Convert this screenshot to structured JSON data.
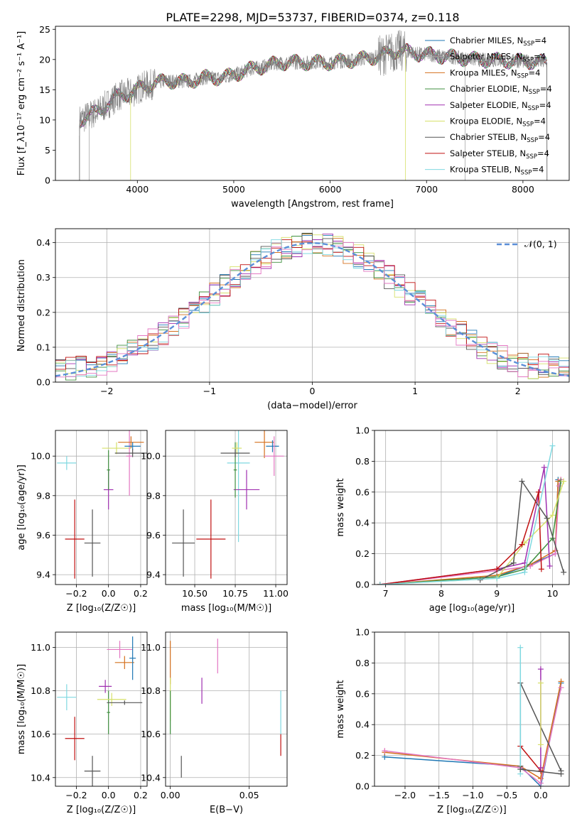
{
  "title": "PLATE=2298, MJD=53737, FIBERID=0374, z=0.118",
  "colors": {
    "Chabrier MILES": "#1f77b4",
    "Salpeter MILES": "#aaaaaa",
    "Kroupa MILES": "#d4701e",
    "Chabrier ELODIE": "#3f8f3f",
    "Salpeter ELODIE": "#a030b0",
    "Kroupa ELODIE": "#d6e06a",
    "Chabrier STELIB": "#555555",
    "Salpeter STELIB": "#c01010",
    "Kroupa STELIB": "#7fd8e0",
    "data": "#808080",
    "normal": "#5b8fd8",
    "pink": "#e377c2"
  },
  "chart_data": [
    {
      "type": "line",
      "xlabel": "wavelength [Angstrom, rest frame]",
      "ylabel": "Flux [f_λ10^-17 erg cm^-2 s^-1 A^-1]",
      "xlim": [
        3150,
        8480
      ],
      "ylim": [
        0,
        25.5
      ],
      "xticks": [
        "4000",
        "5000",
        "6000",
        "7000",
        "8000"
      ],
      "yticks": [
        "0",
        "5",
        "10",
        "15",
        "20",
        "25"
      ],
      "legend_position": "upper-right",
      "legend": [
        "Chabrier MILES, N_SSP=4",
        "Salpeter MILES, N_SSP=4",
        "Kroupa MILES, N_SSP=4",
        "Chabrier ELODIE, N_SSP=4",
        "Salpeter ELODIE, N_SSP=4",
        "Kroupa ELODIE, N_SSP=4",
        "Chabrier STELIB, N_SSP=4",
        "Salpeter STELIB, N_SSP=4",
        "Kroupa STELIB, N_SSP=4"
      ],
      "continuum": [
        [
          3400,
          10
        ],
        [
          3600,
          11.5
        ],
        [
          3800,
          14
        ],
        [
          3950,
          14.5
        ],
        [
          4050,
          15.5
        ],
        [
          4300,
          16.5
        ],
        [
          4500,
          16.3
        ],
        [
          4700,
          17
        ],
        [
          4900,
          17
        ],
        [
          5000,
          17.5
        ],
        [
          5200,
          18.5
        ],
        [
          5500,
          19.5
        ],
        [
          5800,
          19.5
        ],
        [
          6000,
          19.5
        ],
        [
          6300,
          20
        ],
        [
          6500,
          20.5
        ],
        [
          6700,
          21.5
        ],
        [
          6900,
          21
        ],
        [
          7200,
          20.5
        ],
        [
          7500,
          20
        ],
        [
          7800,
          19.8
        ],
        [
          8000,
          19.7
        ],
        [
          8250,
          19.5
        ]
      ],
      "data_wavelength_range": [
        3400,
        8250
      ],
      "model_ranges": {
        "Salpeter MILES": [
          3500,
          7400
        ],
        "Kroupa ELODIE": [
          3930,
          6780
        ],
        "Chabrier STELIB": [
          3400,
          8250
        ]
      }
    },
    {
      "type": "step-histogram",
      "xlabel": "(data-model)/error",
      "ylabel": "Normed distribution",
      "xlim": [
        -2.5,
        2.5
      ],
      "ylim": [
        0,
        0.44
      ],
      "xticks": [
        "-2",
        "-1",
        "0",
        "1",
        "2"
      ],
      "yticks": [
        "0.0",
        "0.1",
        "0.2",
        "0.3",
        "0.4"
      ],
      "grid": true,
      "bin_width": 0.1,
      "reference_curve": "N(0,1)",
      "legend": [
        "𝒩(0, 1)"
      ],
      "legend_position": "upper-right"
    },
    {
      "type": "scatter-errorbar",
      "xlabel": "Z [log10(Z/Z☉)]",
      "ylabel": "age [log10(age/yr)]",
      "xlim": [
        -0.33,
        0.24
      ],
      "ylim": [
        9.35,
        10.13
      ],
      "xticks": [
        "-0.2",
        "0.0",
        "0.2"
      ],
      "yticks": [
        "9.4",
        "9.6",
        "9.8",
        "10.0"
      ],
      "grid": true,
      "points": [
        {
          "series": "Kroupa STELIB",
          "x": -0.26,
          "y": 9.965,
          "xerr": 0.06,
          "yerr": 0.035
        },
        {
          "series": "Salpeter STELIB",
          "x": -0.21,
          "y": 9.58,
          "xerr": 0.06,
          "yerr": 0.2
        },
        {
          "series": "Chabrier STELIB",
          "x": -0.1,
          "y": 9.56,
          "xerr": 0.05,
          "yerr": 0.17
        },
        {
          "series": "Salpeter ELODIE",
          "x": 0.0,
          "y": 9.83,
          "xerr": 0.03,
          "yerr": 0.1
        },
        {
          "series": "Kroupa ELODIE",
          "x": 0.05,
          "y": 10.04,
          "xerr": 0.09,
          "yerr": 0.03
        },
        {
          "series": "pink",
          "x": 0.13,
          "y": 10.0,
          "xerr": 0.02,
          "yerr": 0.2
        },
        {
          "series": "Kroupa MILES",
          "x": 0.14,
          "y": 10.07,
          "xerr": 0.08,
          "yerr": 0.03
        },
        {
          "series": "Chabrier MILES",
          "x": 0.15,
          "y": 10.05,
          "xerr": 0.05,
          "yerr": 0.02
        },
        {
          "series": "Chabrier STELIB",
          "x": 0.15,
          "y": 10.015,
          "xerr": 0.11,
          "yerr": 0.02
        },
        {
          "series": "Chabrier ELODIE",
          "x": 0.0,
          "y": 9.93,
          "xerr": 0.01,
          "yerr": 0.1
        }
      ]
    },
    {
      "type": "scatter-errorbar",
      "xlabel": "mass [log10(M/M☉)]",
      "ylabel": "",
      "xlim": [
        10.32,
        11.07
      ],
      "ylim": [
        9.35,
        10.13
      ],
      "xticks": [
        "10.50",
        "10.75",
        "11.00"
      ],
      "yticks": [
        "9.4",
        "9.6",
        "9.8",
        "10.0"
      ],
      "grid": true,
      "points": [
        {
          "series": "Chabrier STELIB",
          "x": 10.43,
          "y": 9.56,
          "xerr": 0.07,
          "yerr": 0.17
        },
        {
          "series": "Salpeter STELIB",
          "x": 10.6,
          "y": 9.58,
          "xerr": 0.09,
          "yerr": 0.2
        },
        {
          "series": "Kroupa STELIB",
          "x": 10.77,
          "y": 9.965,
          "xerr": 0.07,
          "yerr": 0.4
        },
        {
          "series": "Salpeter ELODIE",
          "x": 10.82,
          "y": 9.83,
          "xerr": 0.08,
          "yerr": 0.1
        },
        {
          "series": "Chabrier ELODIE",
          "x": 10.75,
          "y": 9.93,
          "xerr": 0.01,
          "yerr": 0.14
        },
        {
          "series": "Kroupa ELODIE",
          "x": 10.76,
          "y": 10.04,
          "xerr": 0.03,
          "yerr": 0.03
        },
        {
          "series": "Chabrier STELIB",
          "x": 10.75,
          "y": 10.015,
          "xerr": 0.09,
          "yerr": 0.02
        },
        {
          "series": "Kroupa MILES",
          "x": 10.93,
          "y": 10.07,
          "xerr": 0.06,
          "yerr": 0.08
        },
        {
          "series": "Chabrier MILES",
          "x": 10.98,
          "y": 10.05,
          "xerr": 0.04,
          "yerr": 0.03
        },
        {
          "series": "pink",
          "x": 10.99,
          "y": 10.0,
          "xerr": 0.06,
          "yerr": 0.1
        }
      ]
    },
    {
      "type": "line",
      "xlabel": "age [log10(age/yr)]",
      "ylabel": "mass weight",
      "xlim": [
        6.8,
        10.3
      ],
      "ylim": [
        0,
        1.0
      ],
      "xticks": [
        "7",
        "8",
        "9",
        "10"
      ],
      "yticks": [
        "0.0",
        "0.2",
        "0.4",
        "0.6",
        "0.8",
        "1.0"
      ],
      "grid": true,
      "series": [
        {
          "name": "Chabrier MILES",
          "x": [
            6.9,
            9.0,
            9.6,
            10.05,
            10.1,
            10.15
          ],
          "y": [
            0.0,
            0.05,
            0.13,
            0.2,
            0.68,
            0.67
          ]
        },
        {
          "name": "Kroupa MILES",
          "x": [
            6.9,
            9.0,
            9.6,
            10.05,
            10.1,
            10.15
          ],
          "y": [
            0.0,
            0.06,
            0.13,
            0.22,
            0.67,
            0.68
          ]
        },
        {
          "name": "pink",
          "x": [
            6.9,
            9.0,
            9.6,
            10.05,
            10.12,
            10.15
          ],
          "y": [
            0.0,
            0.09,
            0.12,
            0.2,
            0.64,
            0.68
          ]
        },
        {
          "name": "Chabrier ELODIE",
          "x": [
            6.9,
            9.0,
            9.5,
            10.0,
            10.15
          ],
          "y": [
            0.0,
            0.05,
            0.1,
            0.3,
            0.67
          ]
        },
        {
          "name": "Salpeter ELODIE",
          "x": [
            6.9,
            9.0,
            9.5,
            9.85,
            9.95
          ],
          "y": [
            0.0,
            0.1,
            0.14,
            0.76,
            0.12
          ]
        },
        {
          "name": "Kroupa ELODIE",
          "x": [
            6.9,
            9.0,
            9.5,
            10.0,
            10.2
          ],
          "y": [
            0.0,
            0.04,
            0.27,
            0.45,
            0.67
          ]
        },
        {
          "name": "Chabrier STELIB",
          "x": [
            8.7,
            9.3,
            9.45,
            9.9,
            10.2
          ],
          "y": [
            0.03,
            0.14,
            0.67,
            0.43,
            0.08
          ]
        },
        {
          "name": "Salpeter STELIB",
          "x": [
            6.9,
            9.0,
            9.45,
            9.75,
            9.8
          ],
          "y": [
            0.0,
            0.1,
            0.26,
            0.6,
            0.1
          ]
        },
        {
          "name": "Kroupa STELIB",
          "x": [
            6.9,
            9.0,
            9.5,
            10.0
          ],
          "y": [
            0.0,
            0.04,
            0.08,
            0.9
          ]
        }
      ]
    },
    {
      "type": "scatter-errorbar",
      "xlabel": "Z [log10(Z/Z☉)]",
      "ylabel": "mass [log10(M/M☉)]",
      "xlim": [
        -0.33,
        0.24
      ],
      "ylim": [
        10.36,
        11.07
      ],
      "xticks": [
        "-0.2",
        "0.0",
        "0.2"
      ],
      "yticks": [
        "10.4",
        "10.6",
        "10.8",
        "11.0"
      ],
      "grid": true,
      "points": [
        {
          "series": "Kroupa STELIB",
          "x": -0.26,
          "y": 10.77,
          "xerr": 0.06,
          "yerr": 0.06
        },
        {
          "series": "Salpeter STELIB",
          "x": -0.21,
          "y": 10.58,
          "xerr": 0.06,
          "yerr": 0.1
        },
        {
          "series": "Chabrier STELIB",
          "x": -0.1,
          "y": 10.43,
          "xerr": 0.05,
          "yerr": 0.07
        },
        {
          "series": "Salpeter ELODIE",
          "x": -0.02,
          "y": 10.82,
          "xerr": 0.04,
          "yerr": 0.03
        },
        {
          "series": "Chabrier ELODIE",
          "x": 0.0,
          "y": 10.7,
          "xerr": 0.01,
          "yerr": 0.1
        },
        {
          "series": "Kroupa ELODIE",
          "x": 0.02,
          "y": 10.76,
          "xerr": 0.09,
          "yerr": 0.03
        },
        {
          "series": "Chabrier STELIB",
          "x": 0.1,
          "y": 10.745,
          "xerr": 0.11,
          "yerr": 0.01
        },
        {
          "series": "pink",
          "x": 0.07,
          "y": 10.99,
          "xerr": 0.08,
          "yerr": 0.04
        },
        {
          "series": "Kroupa MILES",
          "x": 0.1,
          "y": 10.93,
          "xerr": 0.06,
          "yerr": 0.03
        },
        {
          "series": "Chabrier MILES",
          "x": 0.15,
          "y": 10.95,
          "xerr": 0.02,
          "yerr": 0.1
        }
      ]
    },
    {
      "type": "scatter-errorbar",
      "xlabel": "E(B-V)",
      "ylabel": "",
      "xlim": [
        -0.003,
        0.074
      ],
      "ylim": [
        10.36,
        11.07
      ],
      "xticks": [
        "0.00",
        "0.05"
      ],
      "yticks": [
        "10.4",
        "10.6",
        "10.8",
        "11.0"
      ],
      "grid": true,
      "points": [
        {
          "series": "Kroupa MILES",
          "x": 0.0,
          "y": 10.93,
          "xerr": 0,
          "yerr": 0.1
        },
        {
          "series": "Kroupa ELODIE",
          "x": 0.0,
          "y": 10.76,
          "xerr": 0,
          "yerr": 0.1
        },
        {
          "series": "Chabrier ELODIE",
          "x": 0.0,
          "y": 10.7,
          "xerr": 0,
          "yerr": 0.1
        },
        {
          "series": "Chabrier STELIB",
          "x": 0.007,
          "y": 10.45,
          "xerr": 0,
          "yerr": 0.05
        },
        {
          "series": "Salpeter ELODIE",
          "x": 0.02,
          "y": 10.8,
          "xerr": 0,
          "yerr": 0.06
        },
        {
          "series": "pink",
          "x": 0.03,
          "y": 10.96,
          "xerr": 0,
          "yerr": 0.08
        },
        {
          "series": "Kroupa STELIB",
          "x": 0.07,
          "y": 10.7,
          "xerr": 0,
          "yerr": 0.1
        },
        {
          "series": "Salpeter STELIB",
          "x": 0.07,
          "y": 10.55,
          "xerr": 0,
          "yerr": 0.05
        }
      ]
    },
    {
      "type": "line",
      "xlabel": "Z [log10(Z/Z☉)]",
      "ylabel": "mass weight",
      "xlim": [
        -2.45,
        0.42
      ],
      "ylim": [
        0,
        1.0
      ],
      "xticks": [
        "-2.0",
        "-1.5",
        "-1.0",
        "-0.5",
        "0.0"
      ],
      "yticks": [
        "0.0",
        "0.2",
        "0.4",
        "0.6",
        "0.8",
        "1.0"
      ],
      "grid": true,
      "series": [
        {
          "name": "Chabrier MILES",
          "x": [
            -2.3,
            -0.3,
            0.0,
            0.3
          ],
          "y": [
            0.19,
            0.13,
            0.0,
            0.67
          ]
        },
        {
          "name": "Kroupa MILES",
          "x": [
            -2.3,
            -0.3,
            0.0,
            0.3
          ],
          "y": [
            0.22,
            0.13,
            0.05,
            0.68
          ]
        },
        {
          "name": "pink",
          "x": [
            -2.3,
            -0.3,
            0.0,
            0.3
          ],
          "y": [
            0.23,
            0.12,
            0.02,
            0.64
          ]
        },
        {
          "name": "Chabrier STELIB",
          "x": [
            -0.3,
            -0.3,
            0.3
          ],
          "y": [
            0.13,
            0.67,
            0.1
          ]
        },
        {
          "name": "Salpeter STELIB",
          "x": [
            -0.3,
            0.0,
            0.0
          ],
          "y": [
            0.26,
            0.1,
            0.12
          ]
        },
        {
          "name": "Salpeter ELODIE",
          "x": [
            0.0,
            0.0
          ],
          "y": [
            0.12,
            0.76
          ]
        },
        {
          "name": "Kroupa ELODIE",
          "x": [
            0.0,
            0.0
          ],
          "y": [
            0.27,
            0.67
          ]
        },
        {
          "name": "Kroupa STELIB",
          "x": [
            -0.3,
            -0.3
          ],
          "y": [
            0.08,
            0.9
          ]
        },
        {
          "name": "Chabrier STELIB",
          "x": [
            -0.3,
            0.3
          ],
          "y": [
            0.11,
            0.08
          ]
        }
      ]
    }
  ]
}
